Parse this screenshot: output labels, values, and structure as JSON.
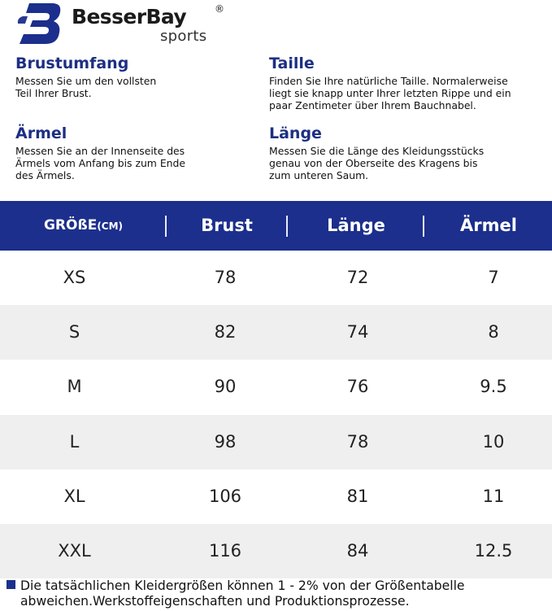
{
  "brand": {
    "name": "BesserBay",
    "sub": "sports",
    "registered": "®",
    "accent": "#1c2f8c"
  },
  "descriptions": {
    "chest": {
      "title": "Brustumfang",
      "text": "Messen Sie um den vollsten\nTeil Ihrer Brust."
    },
    "waist": {
      "title": "Taille",
      "text": "Finden Sie Ihre natürliche Taille. Normalerweise\nliegt sie knapp unter Ihrer letzten Rippe und ein\npaar Zentimeter über Ihrem Bauchnabel."
    },
    "sleeve": {
      "title": "Ärmel",
      "text": "Messen Sie an der Innenseite des\nÄrmels vom Anfang bis zum Ende\ndes Ärmels."
    },
    "length": {
      "title": "Länge",
      "text": "Messen Sie die Länge des Kleidungsstücks\ngenau von der Oberseite des Kragens bis\nzum unteren Saum."
    }
  },
  "table": {
    "headers": {
      "size": "GRÖßE",
      "unit": "(CM)",
      "chest": "Brust",
      "length": "Länge",
      "sleeve": "Ärmel"
    },
    "rows": [
      {
        "size": "XS",
        "chest": "78",
        "length": "72",
        "sleeve": "7"
      },
      {
        "size": "S",
        "chest": "82",
        "length": "74",
        "sleeve": "8"
      },
      {
        "size": "M",
        "chest": "90",
        "length": "76",
        "sleeve": "9.5"
      },
      {
        "size": "L",
        "chest": "98",
        "length": "78",
        "sleeve": "10"
      },
      {
        "size": "XL",
        "chest": "106",
        "length": "81",
        "sleeve": "11"
      },
      {
        "size": "XXL",
        "chest": "116",
        "length": "84",
        "sleeve": "12.5"
      }
    ]
  },
  "footnote": {
    "line1": "Die tatsächlichen Kleidergrößen können 1 - 2% von der Größentabelle",
    "line2": "abweichen.Werkstoffeigenschaften und Produktionsprozesse."
  }
}
